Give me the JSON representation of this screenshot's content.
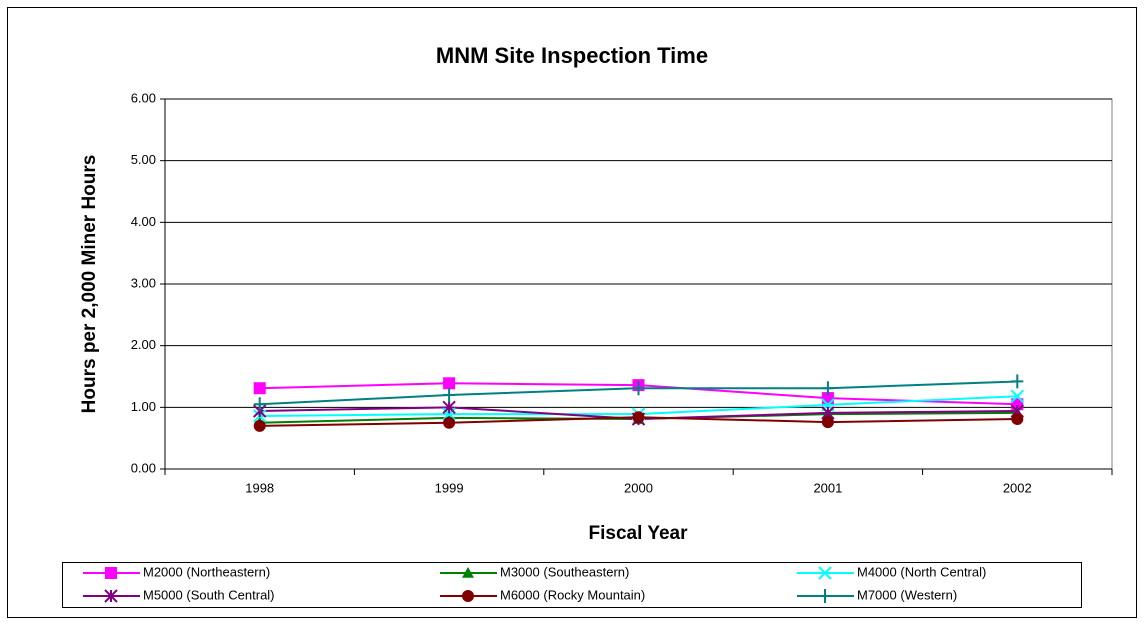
{
  "chart_data": {
    "type": "line",
    "title": "MNM Site Inspection Time",
    "x_label": "Fiscal Year",
    "y_label": "Hours per 2,000 Miner Hours",
    "categories": [
      "1998",
      "1999",
      "2000",
      "2001",
      "2002"
    ],
    "ylim": [
      0,
      6
    ],
    "yticks": [
      {
        "value": 0,
        "label": "0.00"
      },
      {
        "value": 1,
        "label": "1.00"
      },
      {
        "value": 2,
        "label": "2.00"
      },
      {
        "value": 3,
        "label": "3.00"
      },
      {
        "value": 4,
        "label": "4.00"
      },
      {
        "value": 5,
        "label": "5.00"
      },
      {
        "value": 6,
        "label": "6.00"
      }
    ],
    "grid": true,
    "legend": "bottom",
    "series": [
      {
        "name": "M2000 (Northeastern)",
        "color": "#FF00FF",
        "marker": "square",
        "values": [
          1.31,
          1.39,
          1.36,
          1.15,
          1.05
        ]
      },
      {
        "name": "M3000 (Southeastern)",
        "color": "#008000",
        "marker": "triangle",
        "values": [
          0.75,
          0.83,
          0.81,
          0.89,
          0.91
        ]
      },
      {
        "name": "M4000 (North Central)",
        "color": "#00FFFF",
        "marker": "x",
        "values": [
          0.86,
          0.89,
          0.89,
          1.04,
          1.18
        ]
      },
      {
        "name": "M5000 (South Central)",
        "color": "#800080",
        "marker": "asterisk",
        "values": [
          0.94,
          1.0,
          0.81,
          0.91,
          0.94
        ]
      },
      {
        "name": "M6000 (Rocky Mountain)",
        "color": "#800000",
        "marker": "circle",
        "values": [
          0.7,
          0.75,
          0.84,
          0.76,
          0.81
        ]
      },
      {
        "name": "M7000 (Western)",
        "color": "#008080",
        "marker": "plus",
        "values": [
          1.05,
          1.2,
          1.31,
          1.31,
          1.42
        ]
      }
    ]
  }
}
